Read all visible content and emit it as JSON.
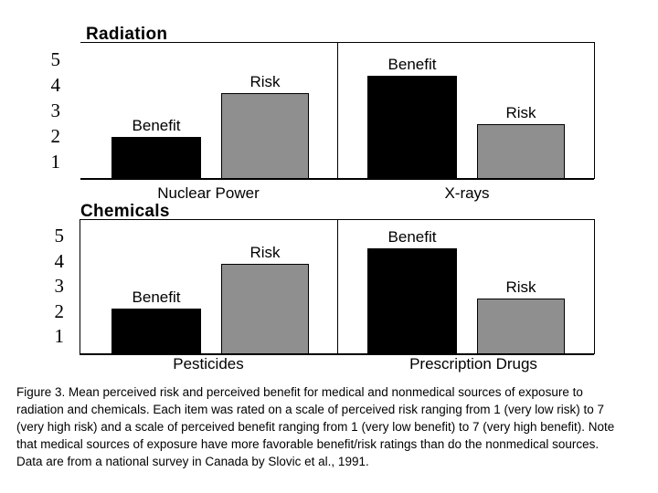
{
  "caption": {
    "lines": [
      "Figure 3. Mean perceived risk and perceived benefit for medical and nonmedical sources of exposure to",
      "radiation and chemicals. Each item was rated on a scale of perceived risk ranging from 1 (very low risk) to 7",
      "(very high risk) and a scale of perceived benefit ranging from 1 (very low benefit) to 7 (very high benefit). Note",
      "that medical sources of exposure have more favorable benefit/risk ratings than do the nonmedical sources.",
      "Data are from a national survey in Canada by Slovic et al., 1991."
    ]
  },
  "colors": {
    "benefit_bar": "#000000",
    "risk_bar": "#8f8f8f",
    "line": "#000000",
    "text": "#000000",
    "background": "#ffffff"
  },
  "chart_data": [
    {
      "type": "bar",
      "title": "Radiation",
      "categories": [
        "Nuclear Power",
        "X-rays"
      ],
      "series": [
        {
          "name": "Benefit",
          "color": "#000000",
          "values": [
            2.0,
            4.4
          ]
        },
        {
          "name": "Risk",
          "color": "#8f8f8f",
          "values": [
            3.7,
            2.5
          ]
        }
      ],
      "yticks": [
        5,
        4,
        3,
        2,
        1
      ],
      "axis_range": [
        0.3,
        5.6
      ],
      "grid": false,
      "legend": "series names printed above each bar",
      "xlabel": "",
      "ylabel": ""
    },
    {
      "type": "bar",
      "title": "Chemicals",
      "categories": [
        "Pesticides",
        "Prescription Drugs"
      ],
      "series": [
        {
          "name": "Benefit",
          "color": "#000000",
          "values": [
            2.1,
            4.5
          ]
        },
        {
          "name": "Risk",
          "color": "#8f8f8f",
          "values": [
            3.9,
            2.5
          ]
        }
      ],
      "yticks": [
        5,
        4,
        3,
        2,
        1
      ],
      "axis_range": [
        0.3,
        5.6
      ],
      "grid": false,
      "legend": "series names printed above each bar",
      "xlabel": "",
      "ylabel": ""
    }
  ]
}
